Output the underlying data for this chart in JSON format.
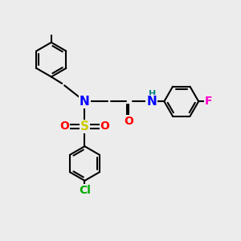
{
  "background_color": "#ececec",
  "atom_colors": {
    "N": "#0000ff",
    "O": "#ff0000",
    "S": "#cccc00",
    "F": "#ff00cc",
    "Cl": "#00aa00",
    "H": "#008080",
    "C": "#000000"
  },
  "bond_color": "#000000",
  "bond_width": 1.5
}
